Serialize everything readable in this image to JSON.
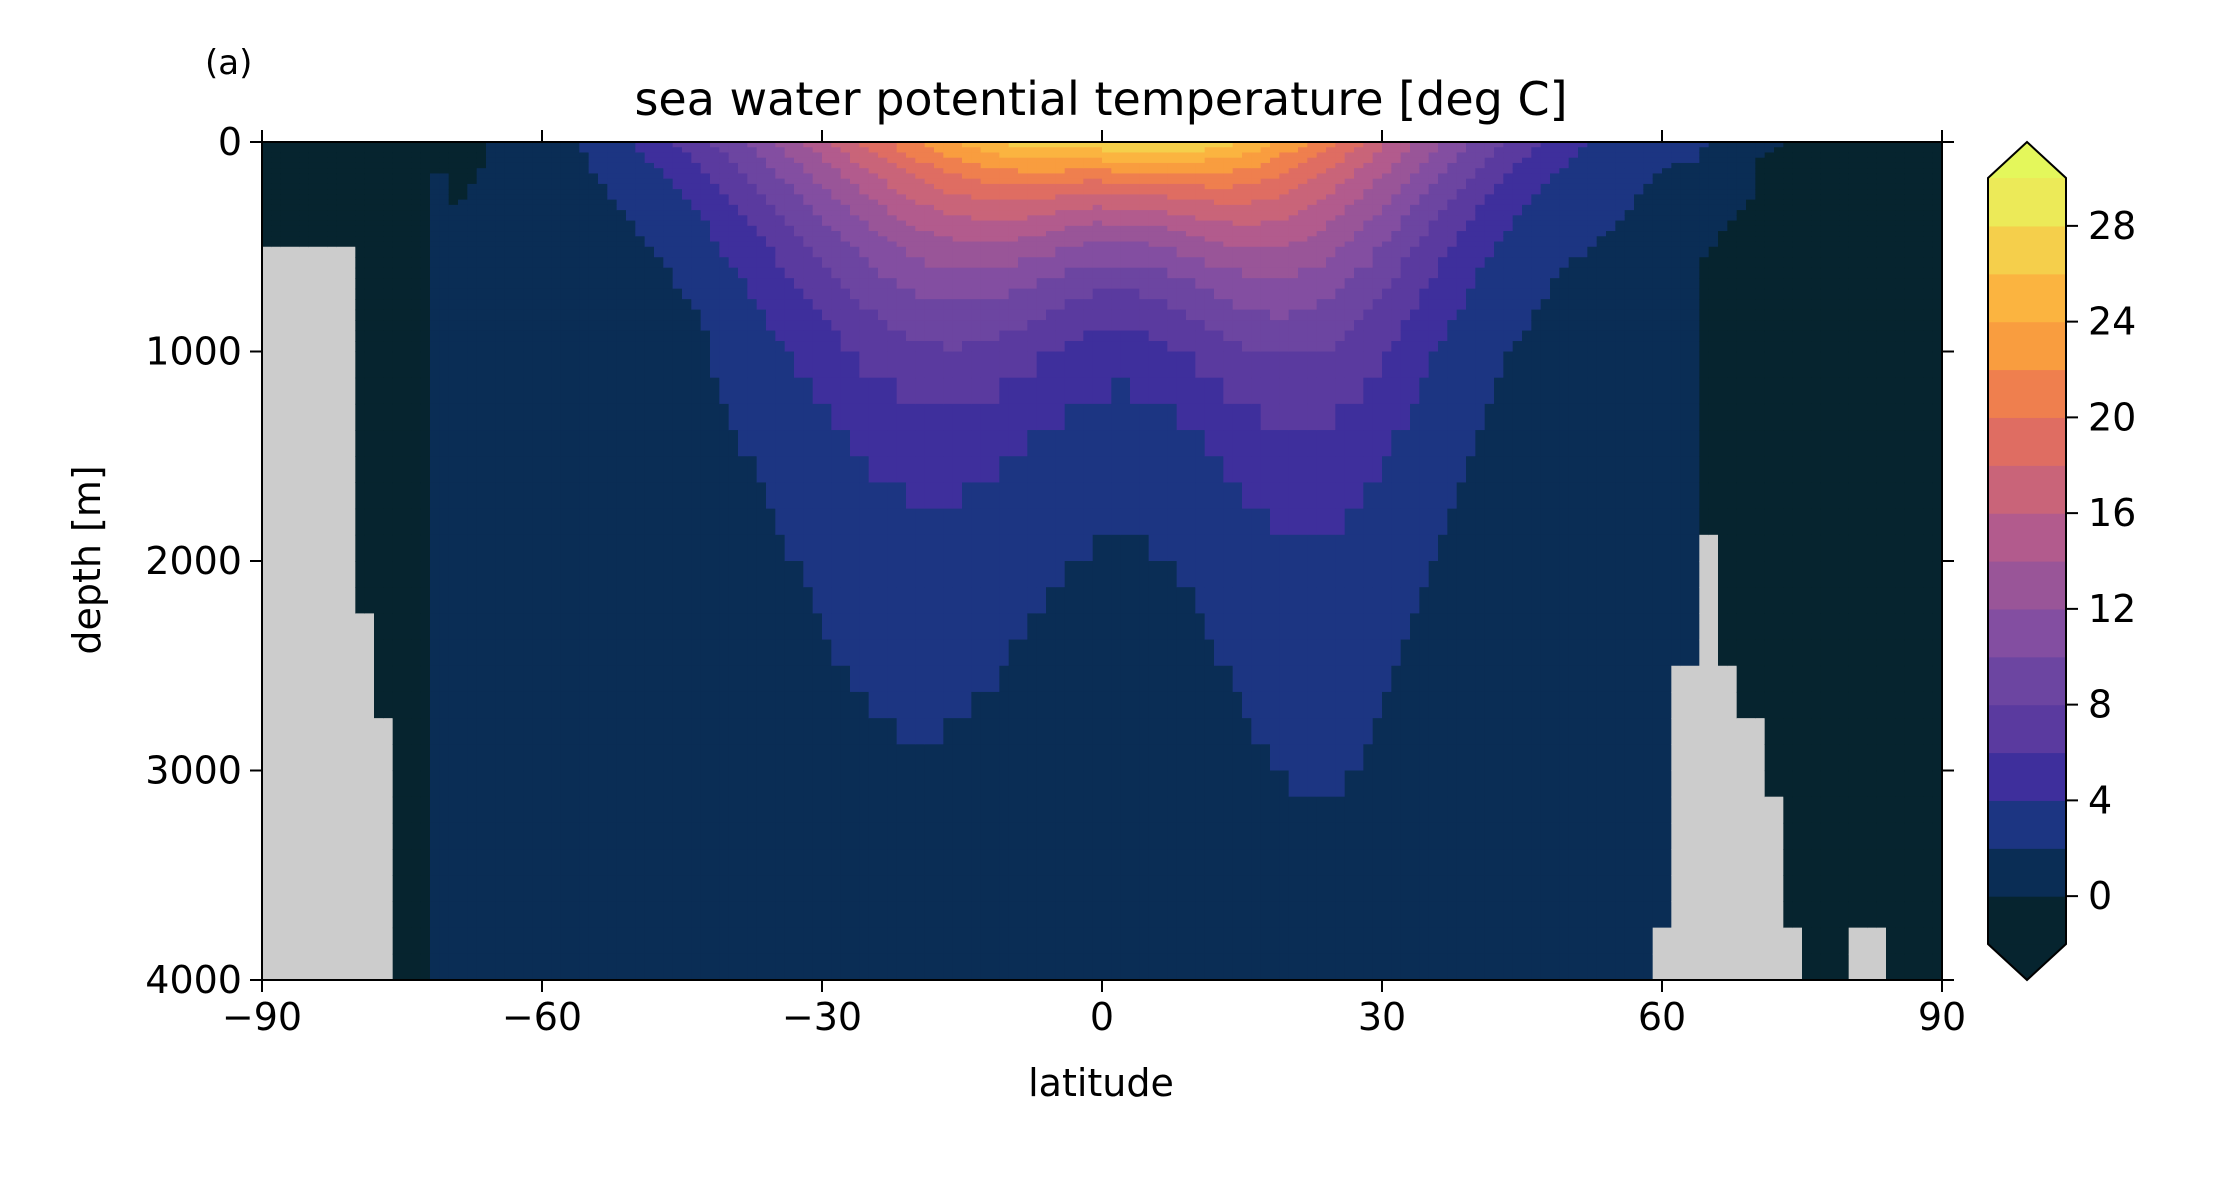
{
  "panel_label": "(a)",
  "chart_data": {
    "type": "heatmap",
    "title": "sea water potential temperature [deg C]",
    "xlabel": "latitude",
    "ylabel": "depth [m]",
    "xlim": [
      -90,
      90
    ],
    "ylim": [
      4000,
      0
    ],
    "y_inverted": true,
    "xticks": [
      -90,
      -60,
      -30,
      0,
      30,
      60,
      90
    ],
    "xtick_labels": [
      "−90",
      "−60",
      "−30",
      "0",
      "30",
      "60",
      "90"
    ],
    "yticks": [
      0,
      1000,
      2000,
      3000,
      4000
    ],
    "ytick_labels": [
      "0",
      "1000",
      "2000",
      "3000",
      "4000"
    ],
    "grid": false,
    "colorbar": {
      "levels": [
        -2,
        0,
        2,
        4,
        6,
        8,
        10,
        12,
        14,
        16,
        18,
        20,
        22,
        24,
        26,
        28,
        30
      ],
      "extend": "both",
      "tick_values": [
        0,
        4,
        8,
        12,
        16,
        20,
        24,
        28
      ],
      "tick_labels": [
        "0",
        "4",
        "8",
        "12",
        "16",
        "20",
        "24",
        "28"
      ],
      "under_color": "#06242f",
      "over_color": "#e4f75b",
      "colors": [
        "#06242f",
        "#0a2d55",
        "#1c3582",
        "#3e2f9c",
        "#5a3a9f",
        "#6c45a1",
        "#834ea1",
        "#995598",
        "#b25b8d",
        "#c96479",
        "#df6d62",
        "#ef7f4e",
        "#f99d3f",
        "#fbb440",
        "#f5cf4b",
        "#ecea58"
      ]
    },
    "land_color": "#cccccc",
    "notes_on_data": "Zonal-mean section; values read from filled contours. Upper-ocean temperatures peak ~28 C near the equator at the surface; deep water 0-2 C; Arctic deep water below 0 C; grey = land/topography."
  }
}
